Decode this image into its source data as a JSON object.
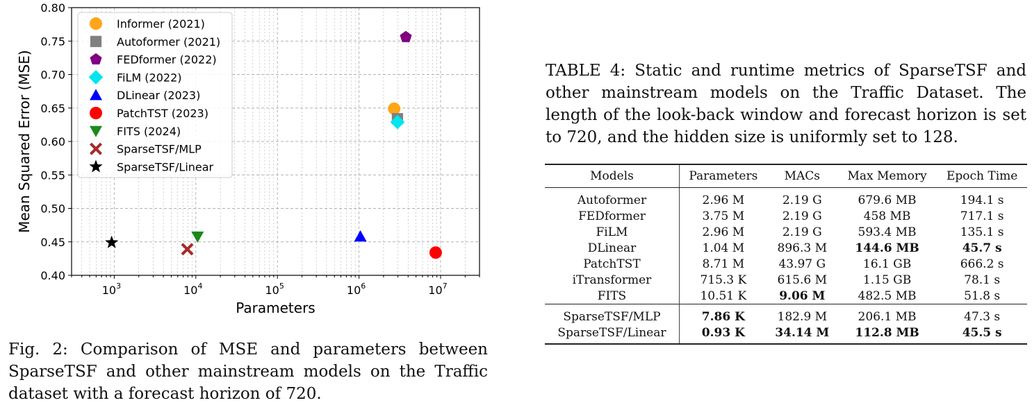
{
  "chart_data": {
    "type": "scatter",
    "xlabel": "Parameters",
    "ylabel": "Mean Squared Error (MSE)",
    "x_scale": "log",
    "xlim": [
      300,
      30000000
    ],
    "ylim": [
      0.4,
      0.8
    ],
    "grid": "on",
    "legend_position": "top-left",
    "x_ticks": [
      {
        "value": 1000,
        "base": "10",
        "exp": "3"
      },
      {
        "value": 10000,
        "base": "10",
        "exp": "4"
      },
      {
        "value": 100000,
        "base": "10",
        "exp": "5"
      },
      {
        "value": 1000000,
        "base": "10",
        "exp": "6"
      },
      {
        "value": 10000000,
        "base": "10",
        "exp": "7"
      }
    ],
    "y_ticks": [
      "0.40",
      "0.45",
      "0.50",
      "0.55",
      "0.60",
      "0.65",
      "0.70",
      "0.75",
      "0.80"
    ],
    "series": [
      {
        "name": "Informer (2021)",
        "marker": "circle",
        "color": "#ffa51a",
        "x": 2700000,
        "y": 0.649
      },
      {
        "name": "Autoformer (2021)",
        "marker": "square",
        "color": "#808080",
        "x": 2960000,
        "y": 0.634
      },
      {
        "name": "FEDformer (2022)",
        "marker": "pentagon",
        "color": "#800080",
        "x": 3750000,
        "y": 0.756
      },
      {
        "name": "FiLM (2022)",
        "marker": "diamond",
        "color": "#00e5ee",
        "x": 2960000,
        "y": 0.629
      },
      {
        "name": "DLinear (2023)",
        "marker": "triangle-up",
        "color": "#0000ff",
        "x": 1040000,
        "y": 0.458
      },
      {
        "name": "PatchTST (2023)",
        "marker": "circle",
        "color": "#ff0000",
        "x": 8710000,
        "y": 0.434
      },
      {
        "name": "FITS (2024)",
        "marker": "triangle-down",
        "color": "#1a8a1a",
        "x": 10510,
        "y": 0.458
      },
      {
        "name": "SparseTSF/MLP",
        "marker": "x",
        "color": "#a52a2a",
        "x": 7860,
        "y": 0.439
      },
      {
        "name": "SparseTSF/Linear",
        "marker": "star",
        "color": "#000000",
        "x": 930,
        "y": 0.449
      }
    ]
  },
  "figure_caption": "Fig. 2: Comparison of MSE and parameters between SparseTSF and other mainstream models on the Traffic dataset with a forecast horizon of 720.",
  "table_caption": "TABLE 4: Static and runtime metrics of SparseTSF and other mainstream models on the Traffic Dataset. The length of the look-back window and forecast horizon is set to 720, and the hidden size is uniformly set to 128.",
  "table": {
    "headers": [
      "Models",
      "Parameters",
      "MACs",
      "Max Memory",
      "Epoch Time"
    ],
    "rows": [
      {
        "cells": [
          "Autoformer",
          "2.96 M",
          "2.19 G",
          "679.6 MB",
          "194.1 s"
        ],
        "bold": []
      },
      {
        "cells": [
          "FEDformer",
          "3.75 M",
          "2.19 G",
          "458 MB",
          "717.1 s"
        ],
        "bold": []
      },
      {
        "cells": [
          "FiLM",
          "2.96 M",
          "2.19 G",
          "593.4 MB",
          "135.1 s"
        ],
        "bold": []
      },
      {
        "cells": [
          "DLinear",
          "1.04 M",
          "896.3 M",
          "144.6 MB",
          "45.7 s"
        ],
        "bold": [
          3,
          4
        ]
      },
      {
        "cells": [
          "PatchTST",
          "8.71 M",
          "43.97 G",
          "16.1 GB",
          "666.2 s"
        ],
        "bold": []
      },
      {
        "cells": [
          "iTransformer",
          "715.3 K",
          "615.6 M",
          "1.15 GB",
          "78.1 s"
        ],
        "bold": []
      },
      {
        "cells": [
          "FITS",
          "10.51 K",
          "9.06 M",
          "482.5 MB",
          "51.8 s"
        ],
        "bold": [
          2
        ]
      },
      {
        "cells": [
          "SparseTSF/MLP",
          "7.86 K",
          "182.9 M",
          "206.1 MB",
          "47.3 s"
        ],
        "bold": [
          1
        ],
        "group_start": true
      },
      {
        "cells": [
          "SparseTSF/Linear",
          "0.93 K",
          "34.14 M",
          "112.8 MB",
          "45.5 s"
        ],
        "bold": [
          1,
          2,
          3,
          4
        ]
      }
    ]
  }
}
